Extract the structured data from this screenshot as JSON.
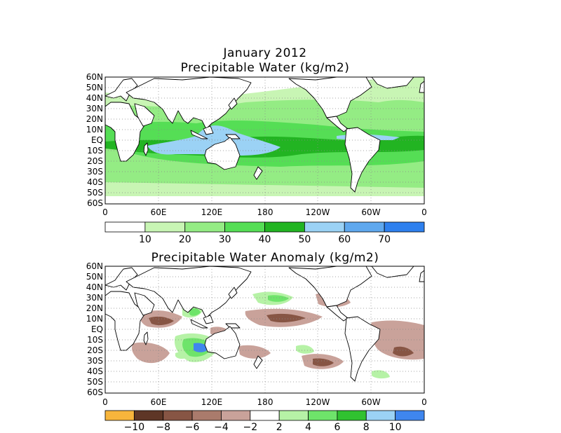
{
  "figure": {
    "title_line1": "January 2012",
    "title_line2": "Precipitable Water (kg/m2)",
    "anomaly_title": "Precipitable Water Anomaly (kg/m2)"
  },
  "axes": {
    "lat_labels": [
      "60N",
      "50N",
      "40N",
      "30N",
      "20N",
      "10N",
      "EQ",
      "10S",
      "20S",
      "30S",
      "40S",
      "50S",
      "60S"
    ],
    "lon_labels": [
      "0",
      "60E",
      "120E",
      "180",
      "120W",
      "60W",
      "0"
    ]
  },
  "colorbar_pw": {
    "labels": [
      "10",
      "20",
      "30",
      "40",
      "50",
      "60",
      "70"
    ],
    "colors": [
      "#ffffff",
      "#c8f5b4",
      "#94ec84",
      "#55de55",
      "#22b422",
      "#9bd2f5",
      "#5fa8ee",
      "#2e80ee"
    ]
  },
  "colorbar_anom": {
    "labels": [
      "−10",
      "−8",
      "−6",
      "−4",
      "−2",
      "2",
      "4",
      "6",
      "8",
      "10"
    ],
    "colors": [
      "#f7b53c",
      "#5e3626",
      "#875544",
      "#aa7b6c",
      "#c9a29a",
      "#ffffff",
      "#b6f2a6",
      "#6ee46a",
      "#30c230",
      "#9bd2f5",
      "#3f86ee"
    ]
  }
}
